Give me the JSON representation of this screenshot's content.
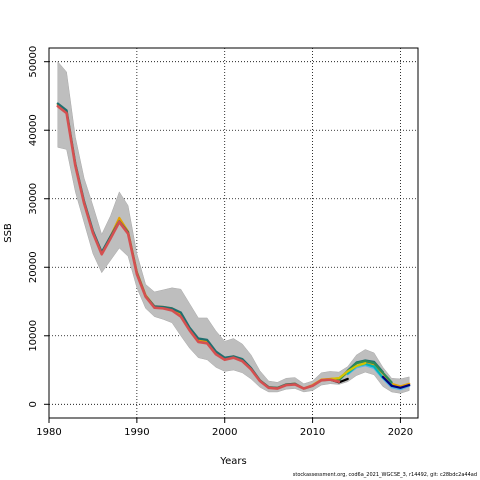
{
  "chart_data": {
    "type": "line",
    "title": "",
    "xlabel": "Years",
    "ylabel": "SSB",
    "xlim": [
      1980,
      2022
    ],
    "ylim": [
      -2000,
      52000
    ],
    "xticks": [
      1980,
      1990,
      2000,
      2010,
      2020
    ],
    "yticks": [
      0,
      10000,
      20000,
      30000,
      40000,
      50000
    ],
    "grid": true,
    "confidence_band": {
      "name": "Confidence interval",
      "color": "#bebebe",
      "x": [
        1981,
        1982,
        1983,
        1984,
        1985,
        1986,
        1987,
        1988,
        1989,
        1990,
        1991,
        1992,
        1993,
        1994,
        1995,
        1996,
        1997,
        1998,
        1999,
        2000,
        2001,
        2002,
        2003,
        2004,
        2005,
        2006,
        2007,
        2008,
        2009,
        2010,
        2011,
        2012,
        2013,
        2014,
        2015,
        2016,
        2017,
        2018,
        2019,
        2020,
        2021
      ],
      "lower": [
        37500,
        37200,
        31000,
        26500,
        22000,
        19200,
        21000,
        22800,
        21600,
        17000,
        14000,
        12800,
        12400,
        11900,
        10000,
        8200,
        6800,
        6500,
        5400,
        4800,
        5000,
        4600,
        3700,
        2500,
        1800,
        1800,
        2200,
        2300,
        1800,
        2000,
        2800,
        3000,
        2900,
        3300,
        4200,
        4700,
        4300,
        2600,
        1800,
        1600,
        2000
      ],
      "upper": [
        50000,
        48500,
        39000,
        33000,
        29000,
        24800,
        27500,
        31000,
        29000,
        22000,
        17500,
        16400,
        16700,
        17000,
        16800,
        14700,
        12600,
        12600,
        10700,
        9200,
        9600,
        8800,
        7200,
        4900,
        3400,
        3200,
        3800,
        3900,
        3000,
        3400,
        4600,
        4800,
        4700,
        5500,
        7200,
        8000,
        7500,
        5400,
        3800,
        3700,
        4000
      ]
    },
    "series": [
      {
        "color": "#e69f00",
        "x": [
          1981,
          1982,
          1983,
          1984,
          1985,
          1986,
          1987,
          1988,
          1989,
          1990,
          1991,
          1992,
          1993,
          1994,
          1995,
          1996,
          1997,
          1998,
          1999,
          2000,
          2001,
          2002,
          2003,
          2004,
          2005,
          2006,
          2007,
          2008,
          2009,
          2010,
          2011,
          2012,
          2013,
          2014,
          2015,
          2016,
          2017,
          2018,
          2019,
          2020,
          2021
        ],
        "values": [
          43800,
          42800,
          35000,
          29500,
          25200,
          22100,
          24500,
          27200,
          25200,
          19300,
          15900,
          14300,
          14200,
          14000,
          13000,
          11000,
          9300,
          9100,
          7500,
          6600,
          7000,
          6400,
          5200,
          3500,
          2500,
          2400,
          2900,
          3000,
          2300,
          2800,
          3600,
          3700,
          3800,
          4600,
          5500,
          6000,
          5700,
          4500,
          3000,
          2600,
          3000
        ]
      },
      {
        "color": "#1f6f6f",
        "x": [
          1981,
          1982,
          1983,
          1984,
          1985,
          1986,
          1987,
          1988,
          1989,
          1990,
          1991,
          1992,
          1993,
          1994,
          1995,
          1996,
          1997,
          1998,
          1999,
          2000,
          2001,
          2002,
          2003,
          2004,
          2005,
          2006,
          2007,
          2008,
          2009,
          2010,
          2011,
          2012,
          2013,
          2014,
          2015,
          2016,
          2017,
          2018
        ],
        "values": [
          43900,
          42900,
          35100,
          29600,
          25300,
          22200,
          24500,
          26700,
          25100,
          19200,
          15800,
          14300,
          14200,
          14000,
          13400,
          11200,
          9600,
          9400,
          7700,
          6800,
          7000,
          6600,
          5300,
          3500,
          2500,
          2400,
          2900,
          3000,
          2300,
          2700,
          3500,
          3600,
          3600,
          4900,
          6100,
          6400,
          6200,
          4700
        ]
      },
      {
        "color": "#2e8b57",
        "x": [
          2013,
          2014,
          2015,
          2016,
          2017,
          2018,
          2019
        ],
        "values": [
          3500,
          4800,
          6000,
          6300,
          6000,
          4600,
          3200
        ]
      },
      {
        "color": "#56b4e9",
        "x": [
          2014,
          2015,
          2016,
          2017,
          2018,
          2019,
          2020,
          2021
        ],
        "values": [
          4400,
          5400,
          5700,
          5300,
          3800,
          2500,
          2200,
          2700
        ]
      },
      {
        "color": "#00b5b5",
        "x": [
          2014,
          2015,
          2016,
          2017,
          2018,
          2019
        ],
        "values": [
          4500,
          5600,
          5900,
          5500,
          3900,
          2800
        ]
      },
      {
        "color": "#d4c400",
        "x": [
          2012,
          2013,
          2014,
          2015,
          2016
        ],
        "values": [
          3700,
          3800,
          4800,
          5600,
          6000
        ]
      },
      {
        "color": "#000000",
        "x": [
          2012,
          2013,
          2014
        ],
        "values": [
          3600,
          3200,
          3700
        ]
      },
      {
        "color": "#000080",
        "x": [
          2018,
          2019,
          2020,
          2021
        ],
        "values": [
          4000,
          2700,
          2400,
          2800
        ]
      },
      {
        "color": "#d45050",
        "x": [
          1981,
          1982,
          1983,
          1984,
          1985,
          1986,
          1987,
          1988,
          1989,
          1990,
          1991,
          1992,
          1993,
          1994,
          1995,
          1996,
          1997,
          1998,
          1999,
          2000,
          2001,
          2002,
          2003,
          2004,
          2005,
          2006,
          2007,
          2008,
          2009,
          2010,
          2011,
          2012,
          2013
        ],
        "values": [
          43500,
          42500,
          34800,
          29300,
          25000,
          21900,
          24200,
          26600,
          24900,
          19000,
          15700,
          14100,
          14000,
          13700,
          12800,
          10800,
          9100,
          8900,
          7300,
          6500,
          6800,
          6300,
          5100,
          3400,
          2400,
          2300,
          2800,
          2900,
          2300,
          2700,
          3500,
          3600,
          3300
        ]
      }
    ]
  },
  "footer": {
    "text": "stockassessment.org, cod6a_2021_WGCSE_3, r14492, git: c28bdc2a44ad"
  }
}
